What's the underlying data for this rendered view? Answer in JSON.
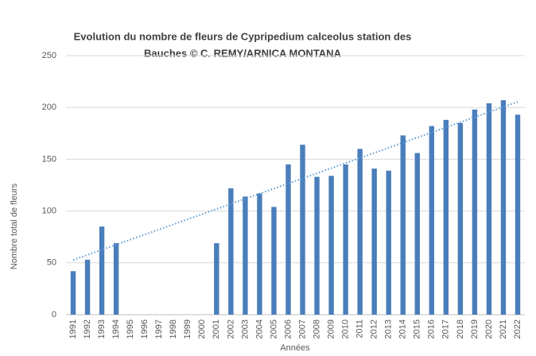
{
  "chart_data": {
    "type": "bar",
    "title": [
      "Evolution du nombre de fleurs de Cypripedium calceolus station des",
      "Bauches © C. REMY/ARNICA MONTANA"
    ],
    "y_label": "Nombre total  de fleurs",
    "x_label": "Années",
    "categories": [
      "1991",
      "1992",
      "1993",
      "1994",
      "1995",
      "1996",
      "1997",
      "1998",
      "1999",
      "2000",
      "2001",
      "2002",
      "2003",
      "2004",
      "2005",
      "2006",
      "2007",
      "2008",
      "2009",
      "2010",
      "2011",
      "2012",
      "2013",
      "2014",
      "2015",
      "2016",
      "2017",
      "2018",
      "2019",
      "2020",
      "2021",
      "2022"
    ],
    "values": [
      42,
      53,
      85,
      69,
      null,
      null,
      null,
      null,
      null,
      null,
      69,
      122,
      114,
      117,
      104,
      145,
      164,
      133,
      134,
      145,
      160,
      141,
      139,
      173,
      156,
      182,
      188,
      185,
      198,
      204,
      207,
      193
    ],
    "color": "#4a7ebb",
    "ylim": [
      0,
      250
    ],
    "yticks": [
      0,
      50,
      100,
      150,
      200,
      250
    ],
    "grid": true,
    "trendline": true
  }
}
